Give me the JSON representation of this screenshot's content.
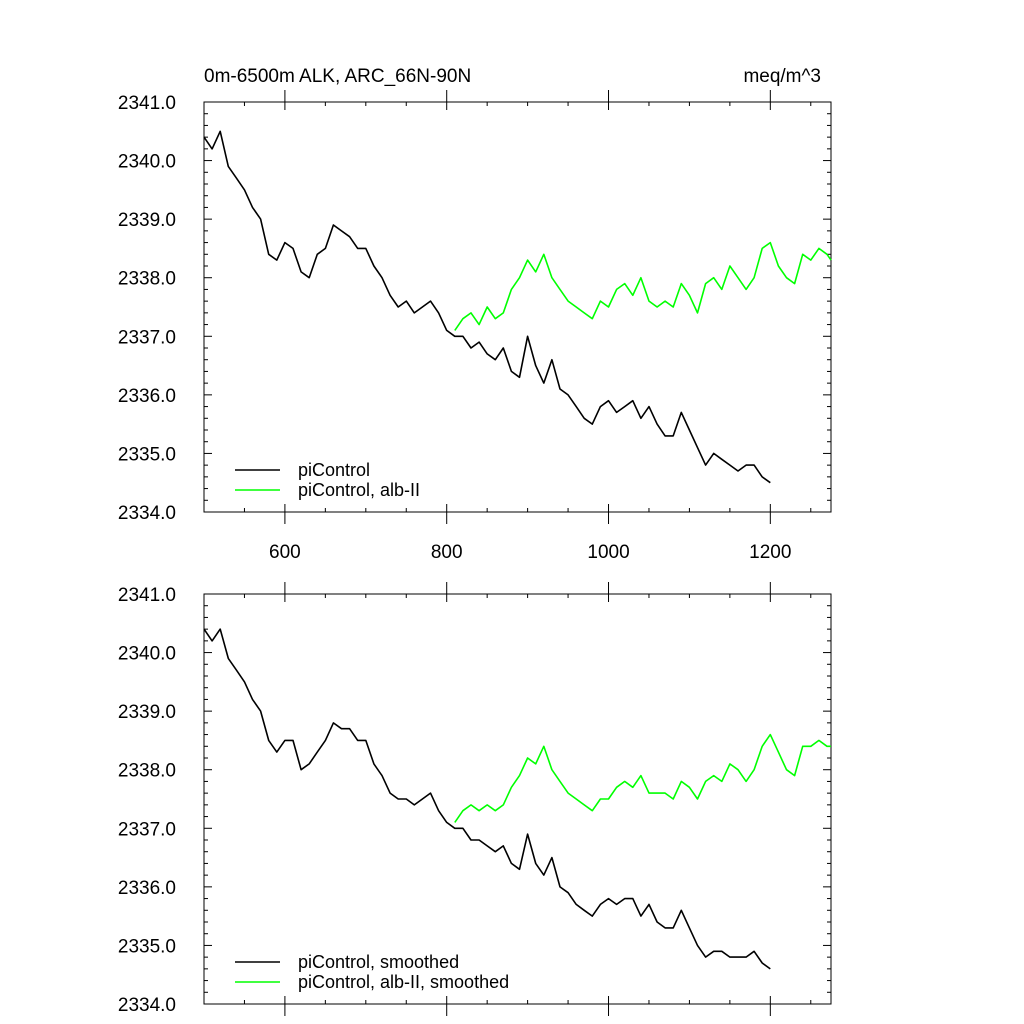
{
  "page": {
    "title_left": "0m-6500m ALK, ARC_66N-90N",
    "title_right": "meq/m^3"
  },
  "colors": {
    "pi": "#000000",
    "alb": "#00ff00"
  },
  "chart_data": [
    {
      "type": "line",
      "xlim": [
        500,
        1275
      ],
      "ylim": [
        2334.0,
        2341.0
      ],
      "x_ticks": [
        600,
        800,
        1000,
        1200
      ],
      "y_ticks": [
        "2334.0",
        "2335.0",
        "2336.0",
        "2337.0",
        "2338.0",
        "2339.0",
        "2340.0",
        "2341.0"
      ],
      "x_tick_labels": [
        "600",
        "800",
        "1000",
        "1200"
      ],
      "legend": [
        "piControl",
        "piControl, alb-II"
      ],
      "series": [
        {
          "name": "piControl",
          "x": [
            500,
            510,
            520,
            530,
            540,
            550,
            560,
            570,
            580,
            590,
            600,
            610,
            620,
            630,
            640,
            650,
            660,
            670,
            680,
            690,
            700,
            710,
            720,
            730,
            740,
            750,
            760,
            770,
            780,
            790,
            800,
            810,
            820,
            830,
            840,
            850,
            860,
            870,
            880,
            890,
            900,
            910,
            920,
            930,
            940,
            950,
            960,
            970,
            980,
            990,
            1000,
            1010,
            1020,
            1030,
            1040,
            1050,
            1060,
            1070,
            1080,
            1090,
            1100,
            1110,
            1120,
            1130,
            1140,
            1150,
            1160,
            1170,
            1180,
            1190,
            1200
          ],
          "y": [
            2340.4,
            2340.2,
            2340.5,
            2339.9,
            2339.7,
            2339.5,
            2339.2,
            2339.0,
            2338.4,
            2338.3,
            2338.6,
            2338.5,
            2338.1,
            2338.0,
            2338.4,
            2338.5,
            2338.9,
            2338.8,
            2338.7,
            2338.5,
            2338.5,
            2338.2,
            2338.0,
            2337.7,
            2337.5,
            2337.6,
            2337.4,
            2337.5,
            2337.6,
            2337.4,
            2337.1,
            2337.0,
            2337.0,
            2336.8,
            2336.9,
            2336.7,
            2336.6,
            2336.8,
            2336.4,
            2336.3,
            2337.0,
            2336.5,
            2336.2,
            2336.6,
            2336.1,
            2336.0,
            2335.8,
            2335.6,
            2335.5,
            2335.8,
            2335.9,
            2335.7,
            2335.8,
            2335.9,
            2335.6,
            2335.8,
            2335.5,
            2335.3,
            2335.3,
            2335.7,
            2335.4,
            2335.1,
            2334.8,
            2335.0,
            2334.9,
            2334.8,
            2334.7,
            2334.8,
            2334.8,
            2334.6,
            2334.5
          ]
        },
        {
          "name": "piControl, alb-II",
          "x": [
            810,
            820,
            830,
            840,
            850,
            860,
            870,
            880,
            890,
            900,
            910,
            920,
            930,
            940,
            950,
            960,
            970,
            980,
            990,
            1000,
            1010,
            1020,
            1030,
            1040,
            1050,
            1060,
            1070,
            1080,
            1090,
            1100,
            1110,
            1120,
            1130,
            1140,
            1150,
            1160,
            1170,
            1180,
            1190,
            1200,
            1210,
            1220,
            1230,
            1240,
            1250,
            1260,
            1270,
            1275
          ],
          "y": [
            2337.1,
            2337.3,
            2337.4,
            2337.2,
            2337.5,
            2337.3,
            2337.4,
            2337.8,
            2338.0,
            2338.3,
            2338.1,
            2338.4,
            2338.0,
            2337.8,
            2337.6,
            2337.5,
            2337.4,
            2337.3,
            2337.6,
            2337.5,
            2337.8,
            2337.9,
            2337.7,
            2338.0,
            2337.6,
            2337.5,
            2337.6,
            2337.5,
            2337.9,
            2337.7,
            2337.4,
            2337.9,
            2338.0,
            2337.8,
            2338.2,
            2338.0,
            2337.8,
            2338.0,
            2338.5,
            2338.6,
            2338.2,
            2338.0,
            2337.9,
            2338.4,
            2338.3,
            2338.5,
            2338.4,
            2338.3
          ]
        }
      ]
    },
    {
      "type": "line",
      "xlim": [
        500,
        1275
      ],
      "ylim": [
        2334.0,
        2341.0
      ],
      "x_ticks": [
        600,
        800,
        1000,
        1200
      ],
      "y_ticks": [
        "2334.0",
        "2335.0",
        "2336.0",
        "2337.0",
        "2338.0",
        "2339.0",
        "2340.0",
        "2341.0"
      ],
      "x_tick_labels": [],
      "legend": [
        "piControl, smoothed",
        "piControl, alb-II, smoothed"
      ],
      "series": [
        {
          "name": "piControl, smoothed",
          "x": [
            500,
            510,
            520,
            530,
            540,
            550,
            560,
            570,
            580,
            590,
            600,
            610,
            620,
            630,
            640,
            650,
            660,
            670,
            680,
            690,
            700,
            710,
            720,
            730,
            740,
            750,
            760,
            770,
            780,
            790,
            800,
            810,
            820,
            830,
            840,
            850,
            860,
            870,
            880,
            890,
            900,
            910,
            920,
            930,
            940,
            950,
            960,
            970,
            980,
            990,
            1000,
            1010,
            1020,
            1030,
            1040,
            1050,
            1060,
            1070,
            1080,
            1090,
            1100,
            1110,
            1120,
            1130,
            1140,
            1150,
            1160,
            1170,
            1180,
            1190,
            1200
          ],
          "y": [
            2340.4,
            2340.2,
            2340.4,
            2339.9,
            2339.7,
            2339.5,
            2339.2,
            2339.0,
            2338.5,
            2338.3,
            2338.5,
            2338.5,
            2338.0,
            2338.1,
            2338.3,
            2338.5,
            2338.8,
            2338.7,
            2338.7,
            2338.5,
            2338.5,
            2338.1,
            2337.9,
            2337.6,
            2337.5,
            2337.5,
            2337.4,
            2337.5,
            2337.6,
            2337.3,
            2337.1,
            2337.0,
            2337.0,
            2336.8,
            2336.8,
            2336.7,
            2336.6,
            2336.7,
            2336.4,
            2336.3,
            2336.9,
            2336.4,
            2336.2,
            2336.5,
            2336.0,
            2335.9,
            2335.7,
            2335.6,
            2335.5,
            2335.7,
            2335.8,
            2335.7,
            2335.8,
            2335.8,
            2335.5,
            2335.7,
            2335.4,
            2335.3,
            2335.3,
            2335.6,
            2335.3,
            2335.0,
            2334.8,
            2334.9,
            2334.9,
            2334.8,
            2334.8,
            2334.8,
            2334.9,
            2334.7,
            2334.6
          ]
        },
        {
          "name": "piControl, alb-II, smoothed",
          "x": [
            810,
            820,
            830,
            840,
            850,
            860,
            870,
            880,
            890,
            900,
            910,
            920,
            930,
            940,
            950,
            960,
            970,
            980,
            990,
            1000,
            1010,
            1020,
            1030,
            1040,
            1050,
            1060,
            1070,
            1080,
            1090,
            1100,
            1110,
            1120,
            1130,
            1140,
            1150,
            1160,
            1170,
            1180,
            1190,
            1200,
            1210,
            1220,
            1230,
            1240,
            1250,
            1260,
            1270,
            1275
          ],
          "y": [
            2337.1,
            2337.3,
            2337.4,
            2337.3,
            2337.4,
            2337.3,
            2337.4,
            2337.7,
            2337.9,
            2338.2,
            2338.1,
            2338.4,
            2338.0,
            2337.8,
            2337.6,
            2337.5,
            2337.4,
            2337.3,
            2337.5,
            2337.5,
            2337.7,
            2337.8,
            2337.7,
            2337.9,
            2337.6,
            2337.6,
            2337.6,
            2337.5,
            2337.8,
            2337.7,
            2337.5,
            2337.8,
            2337.9,
            2337.8,
            2338.1,
            2338.0,
            2337.8,
            2338.0,
            2338.4,
            2338.6,
            2338.3,
            2338.0,
            2337.9,
            2338.4,
            2338.4,
            2338.5,
            2338.4,
            2338.4
          ]
        }
      ]
    }
  ]
}
